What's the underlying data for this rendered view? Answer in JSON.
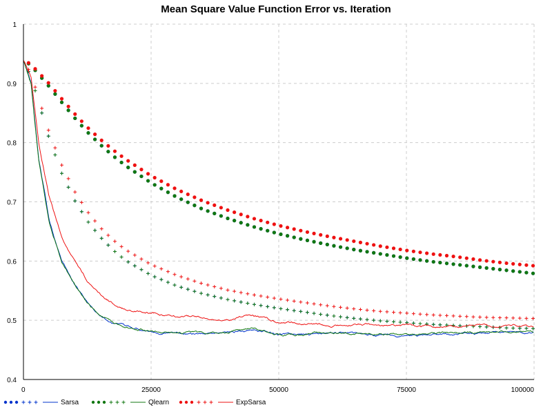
{
  "chart_data": {
    "type": "line",
    "title": "Mean Square Value Function Error vs. Iteration",
    "xlabel": "",
    "ylabel": "",
    "xlim": [
      0,
      100000
    ],
    "ylim": [
      0.4,
      1.0
    ],
    "x_ticks": [
      0,
      25000,
      50000,
      75000,
      100000
    ],
    "y_ticks": [
      0.4,
      0.5,
      0.6,
      0.7,
      0.8,
      0.9,
      1.0
    ],
    "grid": true,
    "legend_position": "bottom",
    "x": [
      0,
      1500,
      3000,
      5000,
      7500,
      10000,
      12500,
      15000,
      17500,
      20000,
      25000,
      30000,
      35000,
      40000,
      45000,
      50000,
      55000,
      60000,
      65000,
      70000,
      75000,
      80000,
      85000,
      90000,
      95000,
      100000
    ],
    "series": [
      {
        "name": "Sarsa",
        "color": "#0033cc",
        "marker_style": "dot",
        "dot_values": [
          0.94,
          0.93,
          0.915,
          0.895,
          0.868,
          0.842,
          0.818,
          0.797,
          0.778,
          0.761,
          0.732,
          0.708,
          0.688,
          0.672,
          0.658,
          0.646,
          0.636,
          0.627,
          0.619,
          0.612,
          0.605,
          0.599,
          0.594,
          0.589,
          0.584,
          0.579
        ],
        "plus_values": [
          0.94,
          0.91,
          0.868,
          0.808,
          0.748,
          0.703,
          0.668,
          0.641,
          0.619,
          0.601,
          0.576,
          0.558,
          0.545,
          0.535,
          0.527,
          0.52,
          0.514,
          0.508,
          0.503,
          0.499,
          0.496,
          0.493,
          0.491,
          0.489,
          0.487,
          0.486
        ],
        "line_values": [
          0.94,
          0.9,
          0.77,
          0.67,
          0.6,
          0.56,
          0.53,
          0.51,
          0.495,
          0.488,
          0.483,
          0.479,
          0.478,
          0.48,
          0.484,
          0.476,
          0.475,
          0.477,
          0.478,
          0.475,
          0.473,
          0.475,
          0.477,
          0.48,
          0.481,
          0.478
        ]
      },
      {
        "name": "Qlearn",
        "color": "#117711",
        "marker_style": "dot",
        "dot_values": [
          0.94,
          0.93,
          0.915,
          0.895,
          0.868,
          0.842,
          0.818,
          0.797,
          0.778,
          0.761,
          0.732,
          0.708,
          0.688,
          0.672,
          0.658,
          0.646,
          0.636,
          0.627,
          0.619,
          0.612,
          0.605,
          0.599,
          0.594,
          0.589,
          0.584,
          0.579
        ],
        "plus_values": [
          0.94,
          0.91,
          0.868,
          0.808,
          0.748,
          0.703,
          0.668,
          0.641,
          0.619,
          0.601,
          0.576,
          0.558,
          0.545,
          0.535,
          0.527,
          0.52,
          0.514,
          0.508,
          0.503,
          0.499,
          0.496,
          0.493,
          0.491,
          0.489,
          0.487,
          0.486
        ],
        "line_values": [
          0.94,
          0.9,
          0.77,
          0.67,
          0.6,
          0.56,
          0.53,
          0.51,
          0.495,
          0.488,
          0.483,
          0.479,
          0.478,
          0.48,
          0.484,
          0.477,
          0.476,
          0.478,
          0.479,
          0.476,
          0.474,
          0.476,
          0.478,
          0.48,
          0.481,
          0.478
        ]
      },
      {
        "name": "ExpSarsa",
        "color": "#ee1111",
        "marker_style": "dot",
        "dot_values": [
          0.94,
          0.932,
          0.918,
          0.9,
          0.874,
          0.849,
          0.826,
          0.806,
          0.788,
          0.772,
          0.744,
          0.721,
          0.702,
          0.686,
          0.672,
          0.66,
          0.65,
          0.641,
          0.633,
          0.625,
          0.618,
          0.612,
          0.607,
          0.601,
          0.596,
          0.592
        ],
        "plus_values": [
          0.94,
          0.915,
          0.875,
          0.818,
          0.762,
          0.718,
          0.684,
          0.657,
          0.636,
          0.619,
          0.594,
          0.576,
          0.562,
          0.551,
          0.543,
          0.536,
          0.53,
          0.524,
          0.519,
          0.515,
          0.512,
          0.509,
          0.507,
          0.505,
          0.504,
          0.503
        ],
        "line_values": [
          0.94,
          0.91,
          0.8,
          0.71,
          0.64,
          0.6,
          0.565,
          0.543,
          0.528,
          0.518,
          0.512,
          0.508,
          0.505,
          0.503,
          0.507,
          0.497,
          0.494,
          0.491,
          0.493,
          0.491,
          0.49,
          0.488,
          0.49,
          0.492,
          0.49,
          0.488
        ]
      }
    ]
  }
}
